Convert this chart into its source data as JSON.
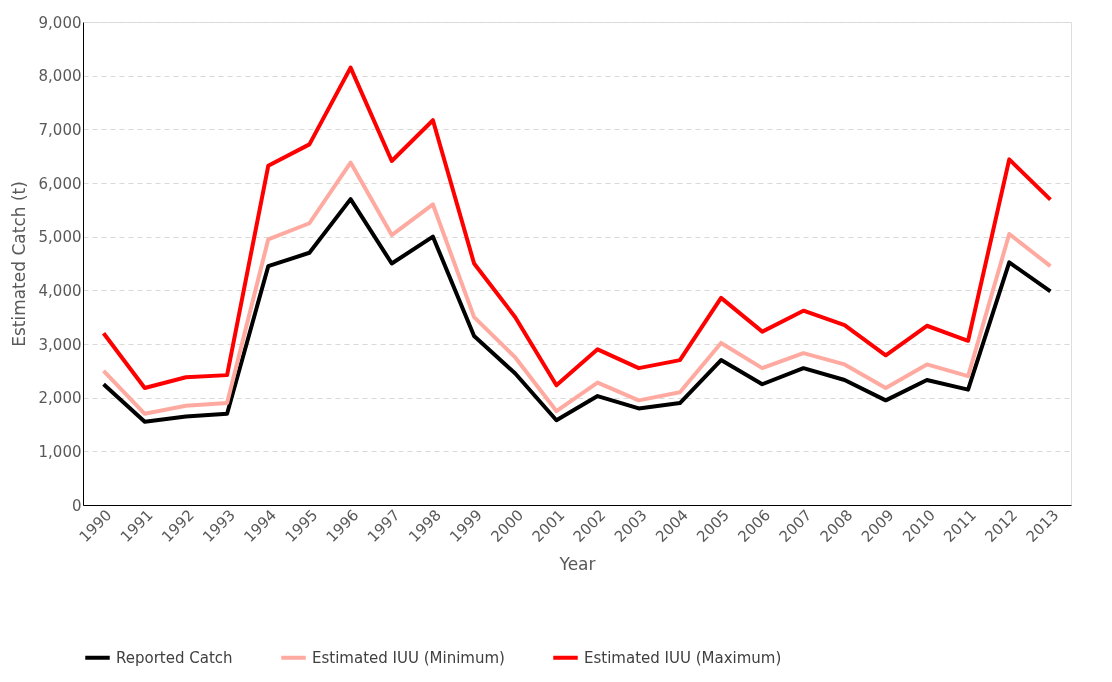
{
  "chart_data": {
    "type": "line",
    "xlabel": "Year",
    "ylabel": "Estimated Catch (t)",
    "categories": [
      "1990",
      "1991",
      "1992",
      "1993",
      "1994",
      "1995",
      "1996",
      "1997",
      "1998",
      "1999",
      "2000",
      "2001",
      "2002",
      "2003",
      "2004",
      "2005",
      "2006",
      "2007",
      "2008",
      "2009",
      "2010",
      "2011",
      "2012",
      "2013"
    ],
    "series": [
      {
        "name": "Reported Catch",
        "color": "#000000",
        "values": [
          2250,
          1550,
          1650,
          1700,
          4450,
          4700,
          5700,
          4500,
          5000,
          3150,
          2450,
          1580,
          2030,
          1800,
          1900,
          2700,
          2250,
          2550,
          2330,
          1950,
          2330,
          2150,
          4520,
          3980
        ]
      },
      {
        "name": "Estimated IUU (Minimum)",
        "color": "#ffaaa0",
        "values": [
          2500,
          1700,
          1850,
          1900,
          4950,
          5250,
          6380,
          5030,
          5600,
          3500,
          2750,
          1750,
          2280,
          1950,
          2100,
          3020,
          2550,
          2830,
          2620,
          2180,
          2620,
          2400,
          5050,
          4450
        ]
      },
      {
        "name": "Estimated IUU (Maximum)",
        "color": "#ff0000",
        "values": [
          3200,
          2180,
          2380,
          2420,
          6320,
          6720,
          8150,
          6410,
          7170,
          4500,
          3500,
          2230,
          2900,
          2550,
          2700,
          3860,
          3230,
          3620,
          3350,
          2790,
          3340,
          3060,
          6440,
          5690
        ]
      }
    ],
    "ylim": [
      0,
      9000
    ],
    "yticks": [
      {
        "value": 0,
        "label": "0"
      },
      {
        "value": 1000,
        "label": "1,000"
      },
      {
        "value": 2000,
        "label": "2,000"
      },
      {
        "value": 3000,
        "label": "3,000"
      },
      {
        "value": 4000,
        "label": "4,000"
      },
      {
        "value": 5000,
        "label": "5,000"
      },
      {
        "value": 6000,
        "label": "6,000"
      },
      {
        "value": 7000,
        "label": "7,000"
      },
      {
        "value": 8000,
        "label": "8,000"
      },
      {
        "value": 9000,
        "label": "9,000"
      }
    ],
    "grid": "y",
    "legend": "bottom",
    "marker": "none",
    "line_style": "solid"
  }
}
